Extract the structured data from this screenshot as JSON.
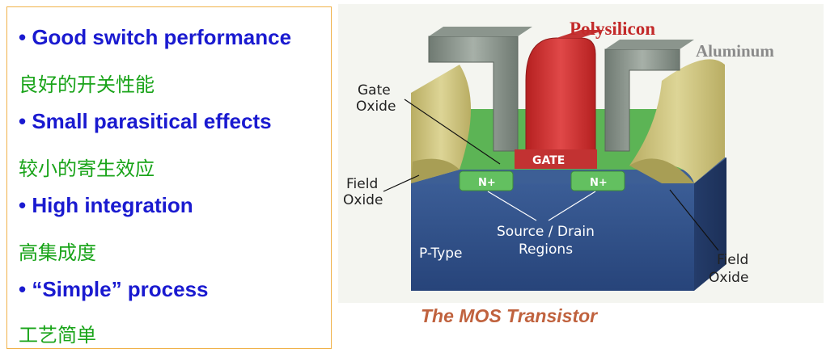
{
  "bullets": [
    {
      "en": "• Good switch performance",
      "cn": "良好的开关性能"
    },
    {
      "en": "• Small parasitical  effects",
      "cn": "较小的寄生效应"
    },
    {
      "en": "• High integration",
      "cn": "高集成度"
    },
    {
      "en": "• “Simple” process",
      "cn": "工艺简单"
    }
  ],
  "diagram": {
    "polysilicon": "Polysilicon",
    "aluminum": "Aluminum",
    "gate_oxide_1": "Gate",
    "gate_oxide_2": "Oxide",
    "field_oxide_left_1": "Field",
    "field_oxide_left_2": "Oxide",
    "field_oxide_right_1": "Field",
    "field_oxide_right_2": "Oxide",
    "gate": "GATE",
    "n_plus_left": "N+",
    "n_plus_right": "N+",
    "source_drain_1": "Source / Drain",
    "source_drain_2": "Regions",
    "p_type": "P-Type"
  },
  "caption": "The MOS Transistor",
  "colors": {
    "bullet_en": "#1a1ad0",
    "bullet_cn": "#1aa41a",
    "border": "#f0b24a",
    "polysilicon": "#d12a2a",
    "substrate": "#2e4f86",
    "oxide": "#c9c07c",
    "n_plus": "#58b85a",
    "caption": "#c0623e"
  }
}
